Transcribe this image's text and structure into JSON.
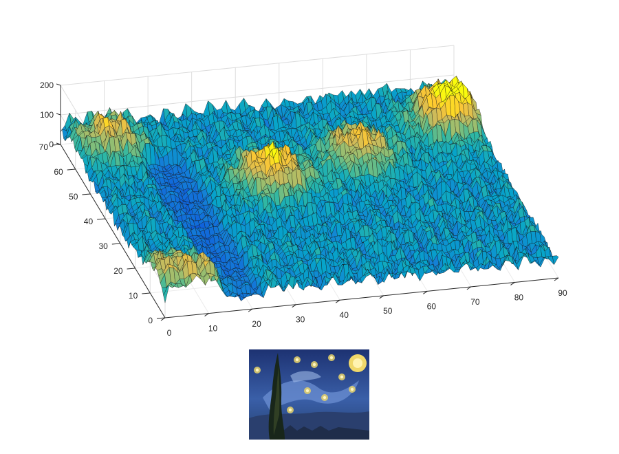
{
  "chart_data": {
    "type": "surface",
    "title": "",
    "xlabel": "",
    "ylabel": "",
    "zlabel": "",
    "xlim": [
      0,
      90
    ],
    "ylim": [
      0,
      70
    ],
    "zlim": [
      0,
      200
    ],
    "x_ticks": [
      0,
      10,
      20,
      30,
      40,
      50,
      60,
      70,
      80,
      90
    ],
    "y_ticks": [
      0,
      10,
      20,
      30,
      40,
      50,
      60,
      70
    ],
    "z_ticks": [
      0,
      100,
      200
    ],
    "x_tick_labels": [
      "0",
      "10",
      "20",
      "30",
      "40",
      "50",
      "60",
      "70",
      "80",
      "90"
    ],
    "y_tick_labels": [
      "0",
      "10",
      "20",
      "30",
      "40",
      "50",
      "60",
      "70"
    ],
    "z_tick_labels": [
      "0",
      "100",
      "200"
    ],
    "grid": true,
    "colormap": "parula",
    "colormap_colors": [
      "#352a87",
      "#0f5cdd",
      "#1481d6",
      "#06a4ca",
      "#2eb7a4",
      "#87bf77",
      "#d1bb59",
      "#fec832",
      "#f9fb0e"
    ],
    "grid_size": {
      "x": 88,
      "y": 66
    },
    "surface_features": [
      {
        "description_x": 84,
        "y": 56,
        "height": 175
      },
      {
        "x": 38,
        "y": 40,
        "height": 150
      },
      {
        "x": 60,
        "y": 46,
        "height": 130
      },
      {
        "x": 8,
        "y": 60,
        "height": 120
      },
      {
        "x": 10,
        "y": 4,
        "height": 90
      },
      {
        "x": 1,
        "y": 8,
        "height": 95
      }
    ],
    "data_note": ""
  },
  "thumbnail": {
    "palette": [
      "#1b2d6b",
      "#2f4f9a",
      "#5b7fc6",
      "#e8d36a",
      "#1a2418"
    ]
  }
}
